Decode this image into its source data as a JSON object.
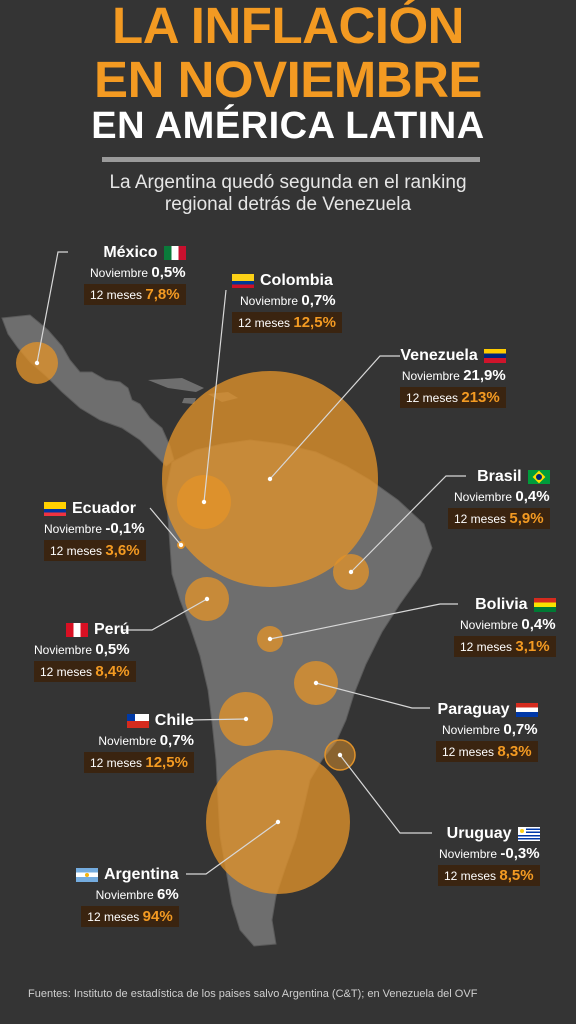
{
  "header": {
    "title_line1": "LA INFLACIÓN",
    "title_line2": "EN NOVIEMBRE",
    "title_line3": "EN AMÉRICA LATINA",
    "subtitle_line1": "La Argentina quedó segunda en el ranking",
    "subtitle_line2": "regional detrás de Venezuela"
  },
  "labels": {
    "month": "Noviembre",
    "year": "12 meses"
  },
  "countries": {
    "mexico": {
      "name": "México",
      "monthly": "0,5%",
      "yearly": "7,8%"
    },
    "colombia": {
      "name": "Colombia",
      "monthly": "0,7%",
      "yearly": "12,5%"
    },
    "venezuela": {
      "name": "Venezuela",
      "monthly": "21,9%",
      "yearly": "213%"
    },
    "brasil": {
      "name": "Brasil",
      "monthly": "0,4%",
      "yearly": "5,9%"
    },
    "ecuador": {
      "name": "Ecuador",
      "monthly": "-0,1%",
      "yearly": "3,6%"
    },
    "bolivia": {
      "name": "Bolivia",
      "monthly": "0,4%",
      "yearly": "3,1%"
    },
    "peru": {
      "name": "Perú",
      "monthly": "0,5%",
      "yearly": "8,4%"
    },
    "paraguay": {
      "name": "Paraguay",
      "monthly": "0,7%",
      "yearly": "8,3%"
    },
    "chile": {
      "name": "Chile",
      "monthly": "0,7%",
      "yearly": "12,5%"
    },
    "uruguay": {
      "name": "Uruguay",
      "monthly": "-0,3%",
      "yearly": "8,5%"
    },
    "argentina": {
      "name": "Argentina",
      "monthly": "6%",
      "yearly": "94%"
    }
  },
  "colors": {
    "background": "#343434",
    "accent": "#f39a22",
    "land": "#6e6e6e",
    "bubble": "#e0922a"
  },
  "footer": "Fuentes: Instituto de estadística de los paises salvo Argentina (C&T); en Venezuela del OVF"
}
